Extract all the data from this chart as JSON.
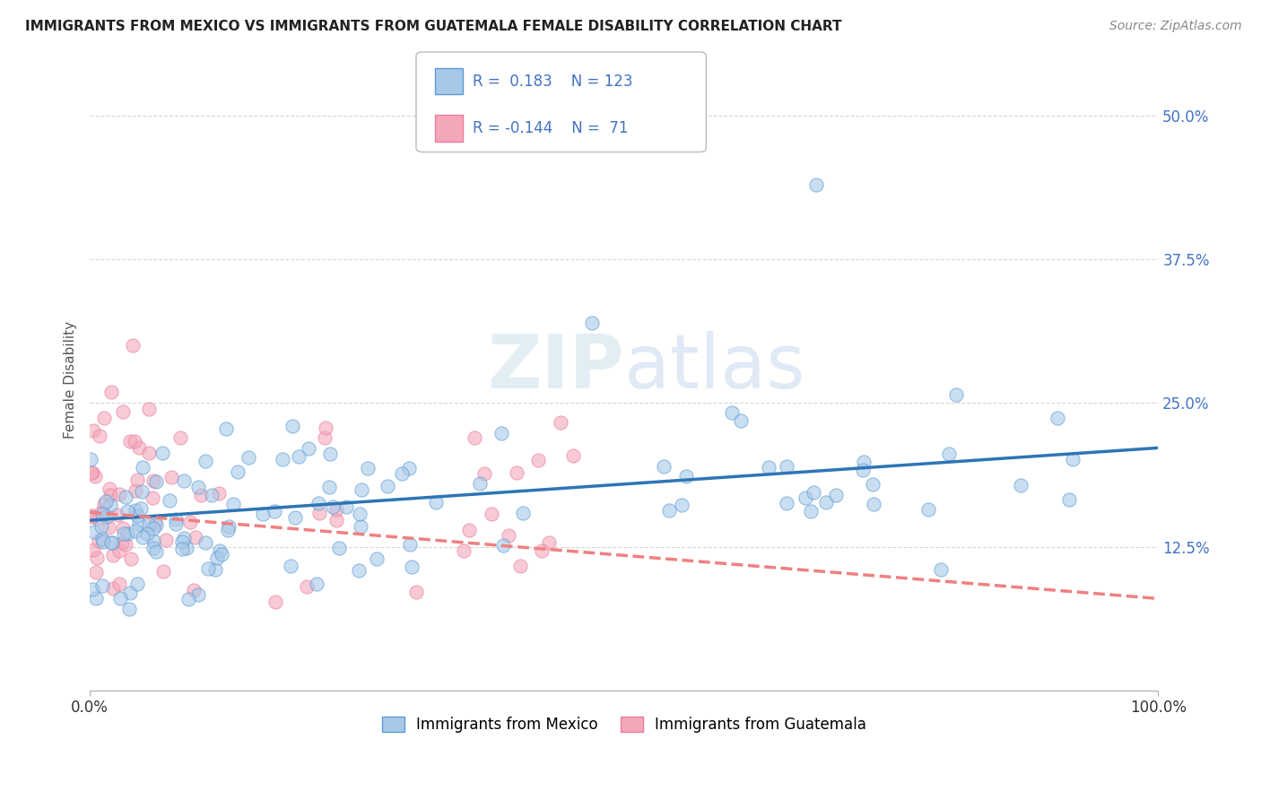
{
  "title": "IMMIGRANTS FROM MEXICO VS IMMIGRANTS FROM GUATEMALA FEMALE DISABILITY CORRELATION CHART",
  "source": "Source: ZipAtlas.com",
  "ylabel": "Female Disability",
  "ytick_labels": [
    "12.5%",
    "25.0%",
    "37.5%",
    "50.0%"
  ],
  "ytick_values": [
    0.125,
    0.25,
    0.375,
    0.5
  ],
  "xlim": [
    0.0,
    1.0
  ],
  "ylim": [
    0.0,
    0.54
  ],
  "legend_label1": "Immigrants from Mexico",
  "legend_label2": "Immigrants from Guatemala",
  "R1": 0.183,
  "N1": 123,
  "R2": -0.144,
  "N2": 71,
  "color_mexico": "#a8c8e8",
  "color_guatemala": "#f4a7b9",
  "color_mexico_edge": "#5b9bd5",
  "color_guatemala_edge": "#e87fa0",
  "color_mexico_line": "#2e75b6",
  "color_guatemala_line": "#f08080",
  "color_stat": "#4472c4",
  "background_color": "#ffffff",
  "watermark_zip": "ZIP",
  "watermark_atlas": "atlas",
  "grid_color": "#cccccc",
  "title_fontsize": 11,
  "source_fontsize": 10,
  "tick_fontsize": 12,
  "scatter_size": 120,
  "scatter_alpha": 0.6,
  "line_width": 2.5
}
